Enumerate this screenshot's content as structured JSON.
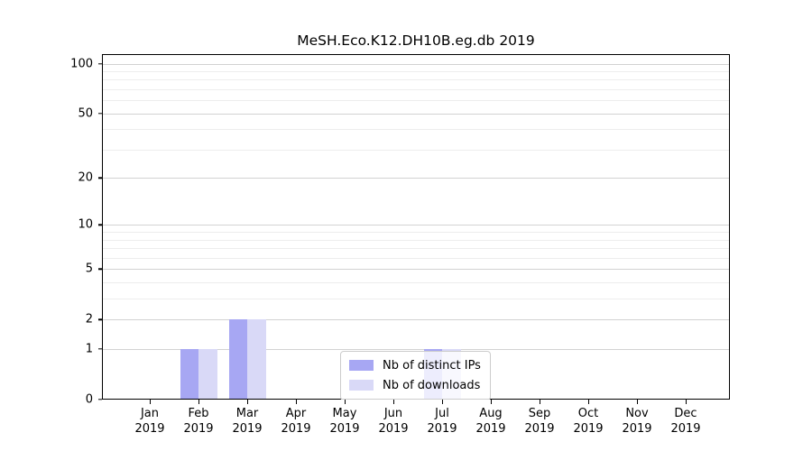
{
  "chart_data": {
    "type": "bar",
    "title": "MeSH.Eco.K12.DH10B.eg.db 2019",
    "categories": [
      "Jan",
      "Feb",
      "Mar",
      "Apr",
      "May",
      "Jun",
      "Jul",
      "Aug",
      "Sep",
      "Oct",
      "Nov",
      "Dec"
    ],
    "year_label": "2019",
    "series": [
      {
        "name": "Nb of distinct IPs",
        "color": "#a7a7f3",
        "values": [
          0,
          1,
          2,
          0,
          0,
          0,
          1,
          0,
          0,
          0,
          0,
          0
        ]
      },
      {
        "name": "Nb of downloads",
        "color": "#d9d9f7",
        "values": [
          0,
          1,
          2,
          0,
          0,
          0,
          1,
          0,
          0,
          0,
          0,
          0
        ]
      }
    ],
    "y_scale": "log1p",
    "ylim": [
      0,
      114
    ],
    "y_major_ticks": [
      0,
      1,
      2,
      5,
      10,
      20,
      50,
      100
    ],
    "y_minor_ticks": [
      3,
      4,
      6,
      7,
      8,
      9,
      30,
      40,
      60,
      70,
      80,
      90
    ],
    "grid": "horizontal",
    "legend_position": "lower center",
    "colors": {
      "major_grid": "#d2d2d2",
      "minor_grid": "#ededed",
      "spine": "#000000",
      "background": "#ffffff"
    }
  }
}
